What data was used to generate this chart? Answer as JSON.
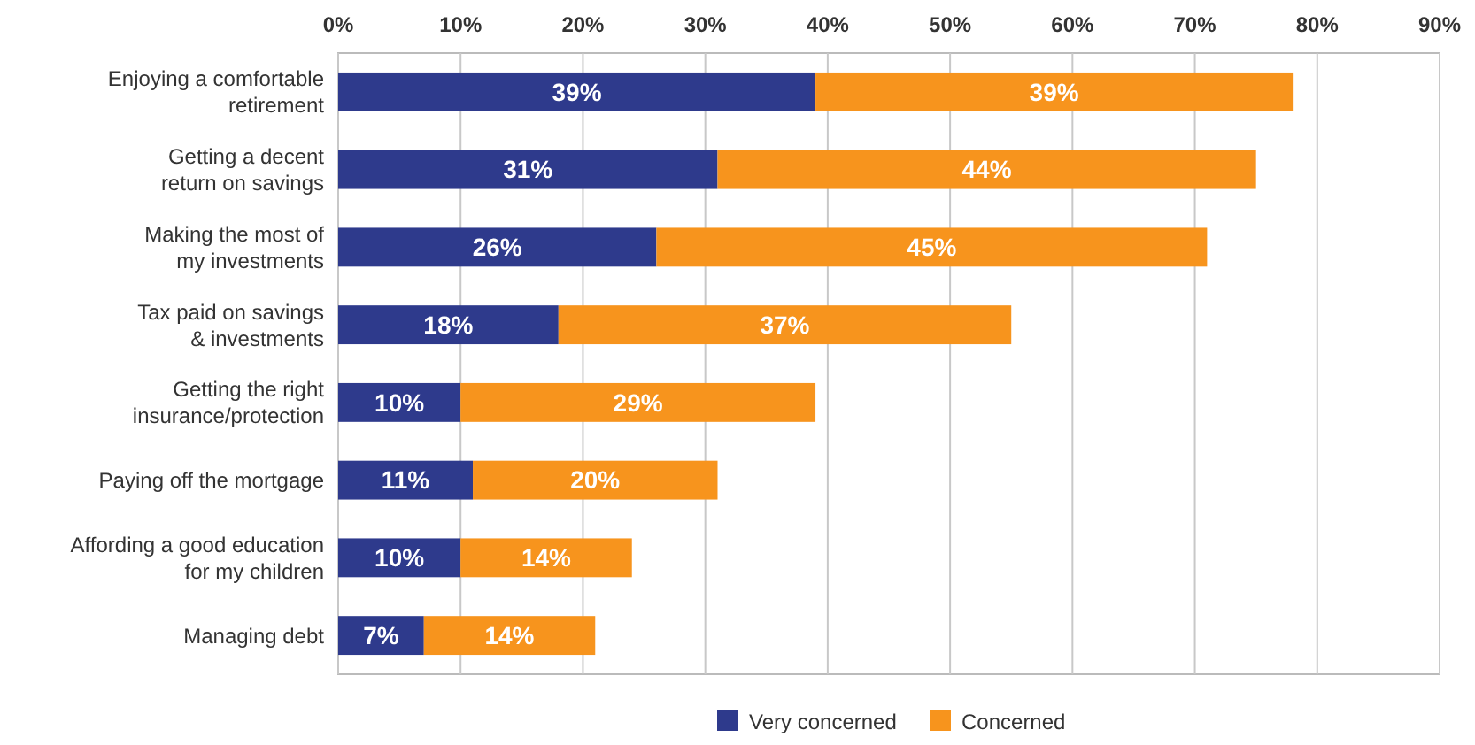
{
  "chart_data": {
    "type": "bar",
    "orientation": "horizontal",
    "stacked": true,
    "categories": [
      "Enjoying a comfortable\nretirement",
      "Getting a decent\nreturn on savings",
      "Making the most of\nmy investments",
      "Tax paid on savings\n& investments",
      "Getting the right\ninsurance/protection",
      "Paying off the mortgage",
      "Affording a good education\nfor my children",
      "Managing debt"
    ],
    "series": [
      {
        "name": "Very concerned",
        "color": "#2e3a8c",
        "values": [
          39,
          31,
          26,
          18,
          10,
          11,
          10,
          7
        ],
        "value_labels": [
          "39%",
          "31%",
          "26%",
          "18%",
          "10%",
          "11%",
          "10%",
          "7%"
        ]
      },
      {
        "name": "Concerned",
        "color": "#f7941d",
        "values": [
          39,
          44,
          45,
          37,
          29,
          20,
          14,
          14
        ],
        "value_labels": [
          "39%",
          "44%",
          "45%",
          "37%",
          "29%",
          "20%",
          "14%",
          "14%"
        ]
      }
    ],
    "xlim": [
      0,
      90
    ],
    "xticks": [
      {
        "value": 0,
        "label": "0%"
      },
      {
        "value": 10,
        "label": "10%"
      },
      {
        "value": 20,
        "label": "20%"
      },
      {
        "value": 30,
        "label": "30%"
      },
      {
        "value": 40,
        "label": "40%"
      },
      {
        "value": 50,
        "label": "50%"
      },
      {
        "value": 60,
        "label": "60%"
      },
      {
        "value": 70,
        "label": "70%"
      },
      {
        "value": 80,
        "label": "80%"
      },
      {
        "value": 90,
        "label": "90%"
      }
    ],
    "grid": "x",
    "legend": "bottom"
  }
}
